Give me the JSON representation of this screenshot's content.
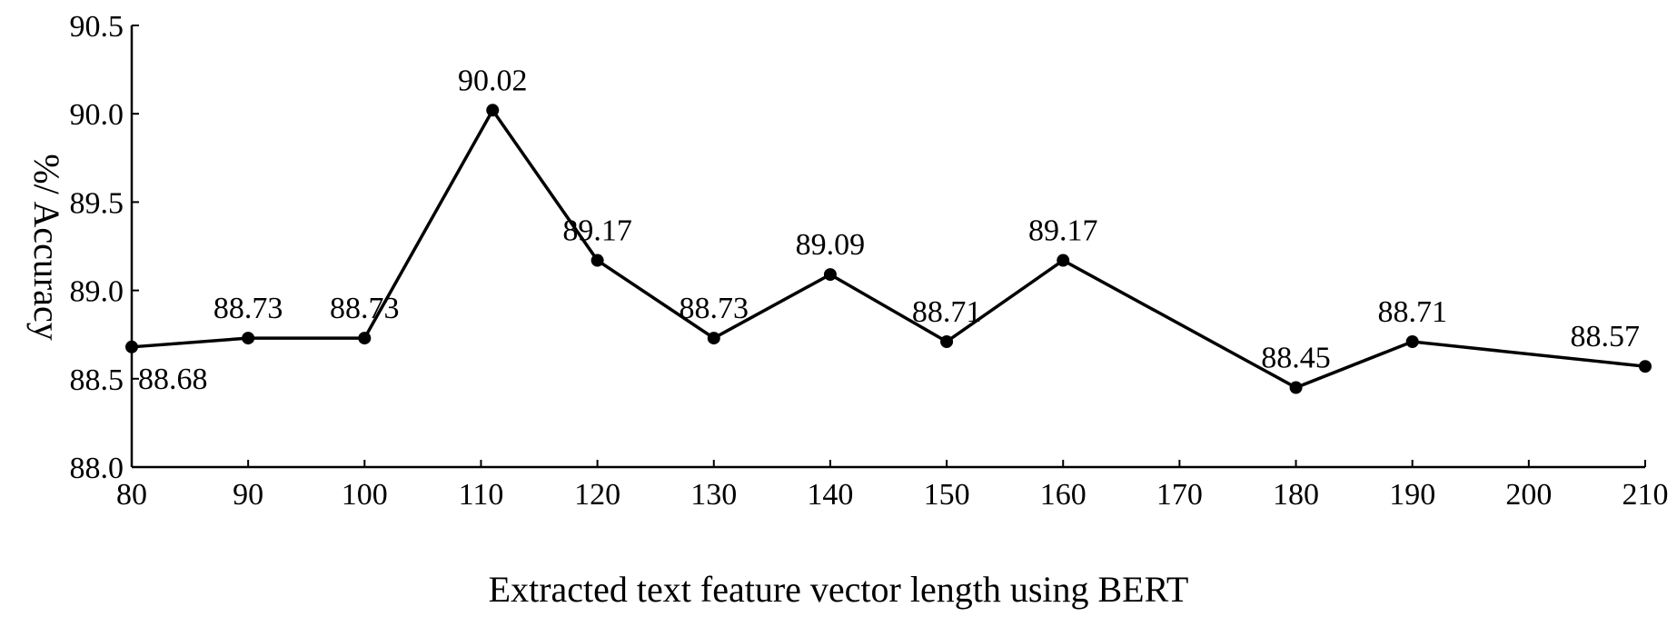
{
  "chart_data": {
    "type": "line",
    "title": "",
    "xlabel": "Extracted text feature vector length using BERT",
    "ylabel": "%/ Accuracy",
    "xlim": [
      80,
      210
    ],
    "ylim": [
      88.0,
      90.5
    ],
    "x_ticks": [
      "80",
      "90",
      "100",
      "110",
      "120",
      "130",
      "140",
      "150",
      "160",
      "170",
      "180",
      "190",
      "200",
      "210"
    ],
    "y_ticks": [
      "88.0",
      "88.5",
      "89.0",
      "89.5",
      "90.0",
      "90.5"
    ],
    "grid": false,
    "legend": "none",
    "series": [
      {
        "color": "#000000",
        "points": [
          {
            "x": 80,
            "y": 88.68,
            "label": "88.68"
          },
          {
            "x": 90,
            "y": 88.73,
            "label": "88.73"
          },
          {
            "x": 100,
            "y": 88.73,
            "label": "88.73"
          },
          {
            "x": 111,
            "y": 90.02,
            "label": "90.02"
          },
          {
            "x": 120,
            "y": 89.17,
            "label": "89.17"
          },
          {
            "x": 130,
            "y": 88.73,
            "label": "88.73"
          },
          {
            "x": 140,
            "y": 89.09,
            "label": "89.09"
          },
          {
            "x": 150,
            "y": 88.71,
            "label": "88.71"
          },
          {
            "x": 160,
            "y": 89.17,
            "label": "89.17"
          },
          {
            "x": 180,
            "y": 88.45,
            "label": "88.45"
          },
          {
            "x": 190,
            "y": 88.71,
            "label": "88.71"
          },
          {
            "x": 210,
            "y": 88.57,
            "label": "88.57"
          }
        ]
      }
    ]
  }
}
